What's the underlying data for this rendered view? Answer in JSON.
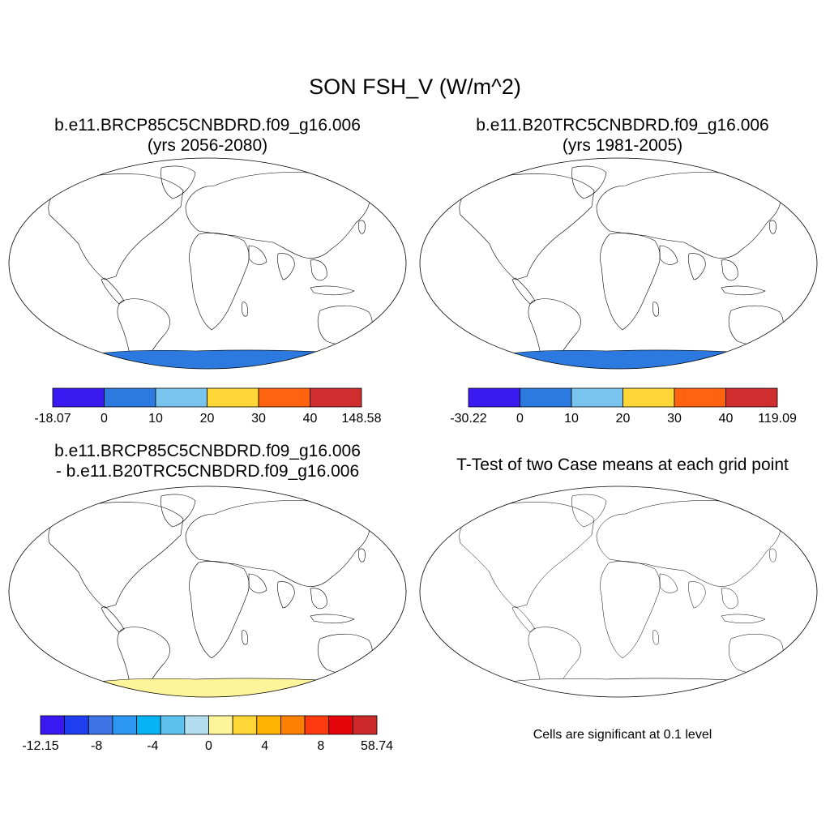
{
  "title": "SON FSH_V (W/m^2)",
  "panels": [
    {
      "line1": "b.e11.BRCP85C5CNBDRD.f09_g16.006",
      "line2": "(yrs 2056-2080)",
      "colorbar": {
        "labels": [
          "-18.07",
          "0",
          "10",
          "20",
          "30",
          "40",
          "148.58"
        ],
        "colors": [
          "#3a1af0",
          "#2c7ae0",
          "#78c4ee",
          "#fed636",
          "#ff6310",
          "#d02e2e"
        ]
      }
    },
    {
      "line1": "b.e11.B20TRC5CNBDRD.f09_g16.006",
      "line2": "(yrs 1981-2005)",
      "colorbar": {
        "labels": [
          "-30.22",
          "0",
          "10",
          "20",
          "30",
          "40",
          "119.09"
        ],
        "colors": [
          "#3a1af0",
          "#2c7ae0",
          "#78c4ee",
          "#fed636",
          "#ff6310",
          "#d02e2e"
        ]
      }
    },
    {
      "line1": "b.e11.BRCP85C5CNBDRD.f09_g16.006",
      "line2": "- b.e11.B20TRC5CNBDRD.f09_g16.006",
      "colorbar": {
        "labels": [
          "-12.15",
          "-8",
          "-4",
          "0",
          "4",
          "8",
          "58.74"
        ],
        "colors": [
          "#3a18f2",
          "#1f3ef0",
          "#3e74e4",
          "#2c98f4",
          "#06b4f4",
          "#5ec2f0",
          "#b4def0",
          "#fef59a",
          "#fed636",
          "#feb400",
          "#fe8000",
          "#fe3a10",
          "#e4050a",
          "#cc2a2a"
        ]
      }
    },
    {
      "line1": "T-Test of two Case means at each grid point",
      "note": "Cells are significant at 0.1 level",
      "colors": [
        "#fe0000"
      ]
    }
  ],
  "fill_colors": {
    "ocean": "#ffffff",
    "antarctica_abs": "#2c7ae0",
    "antarctica_diff": "#fef59a",
    "significant": "#fe0000"
  }
}
